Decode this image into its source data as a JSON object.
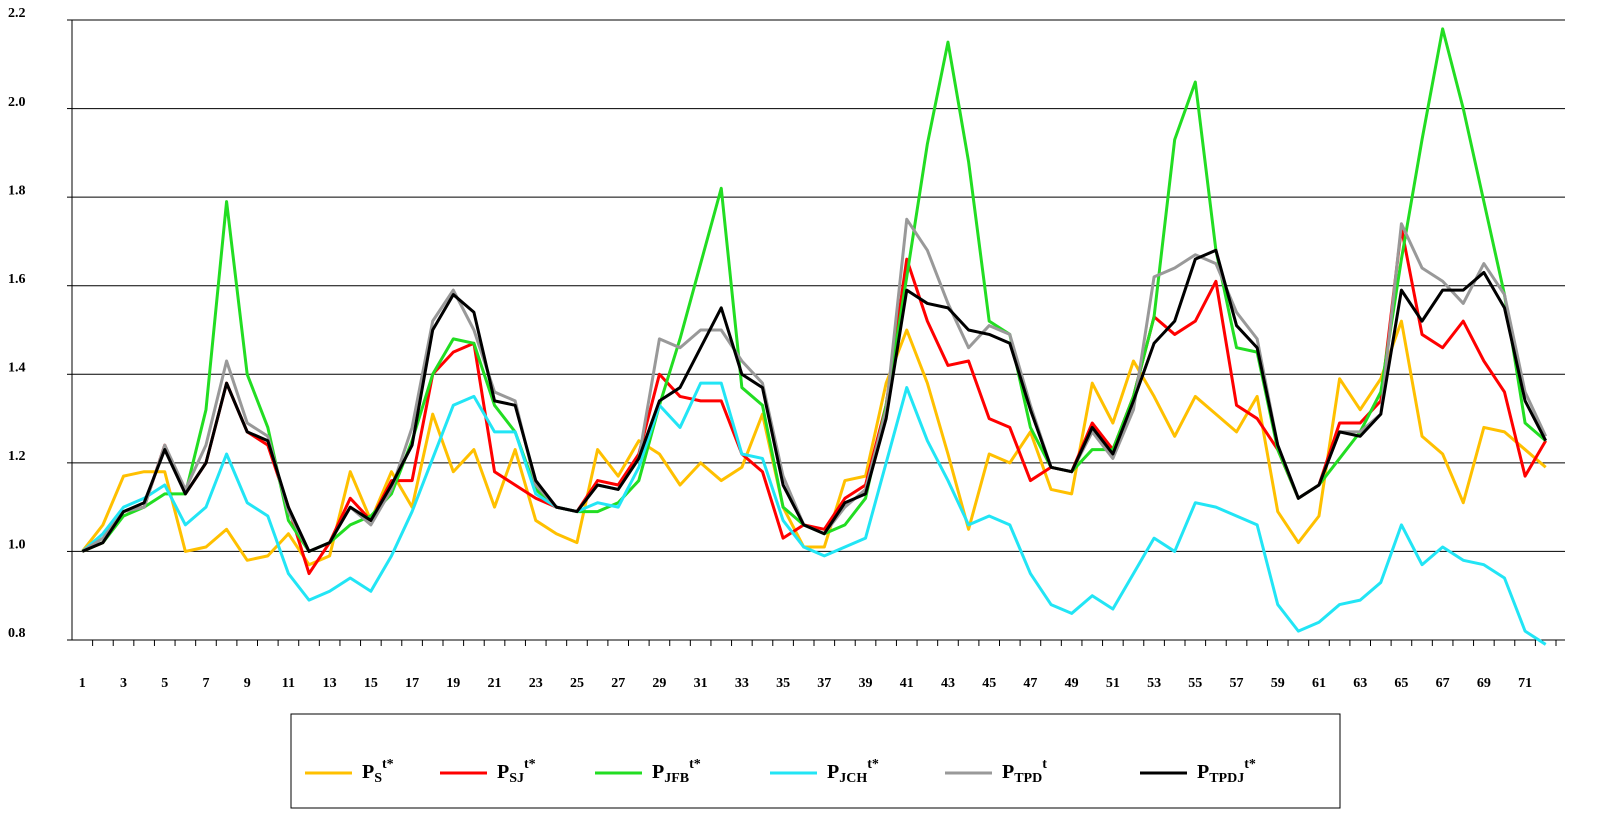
{
  "chart_data": {
    "type": "line",
    "categories": [
      1,
      null,
      3,
      null,
      5,
      null,
      7,
      null,
      9,
      null,
      11,
      null,
      13,
      null,
      15,
      null,
      17,
      null,
      19,
      null,
      21,
      null,
      23,
      null,
      25,
      null,
      27,
      null,
      29,
      null,
      31,
      null,
      33,
      null,
      35,
      null,
      37,
      null,
      39,
      null,
      41,
      null,
      43,
      null,
      45,
      null,
      47,
      null,
      49,
      null,
      51,
      null,
      53,
      null,
      55,
      null,
      57,
      null,
      59,
      null,
      61,
      null,
      63,
      null,
      65,
      null,
      67,
      null,
      69,
      null,
      71,
      null
    ],
    "ylim": [
      0.8,
      2.2
    ],
    "yticks": [
      {
        "value": 0.8,
        "label": "0.8"
      },
      {
        "value": 1.0,
        "label": "1.0"
      },
      {
        "value": 1.2,
        "label": "1.2"
      },
      {
        "value": 1.4,
        "label": "1.4"
      },
      {
        "value": 1.6,
        "label": "1.6"
      },
      {
        "value": 1.8,
        "label": "1.8"
      },
      {
        "value": 2.0,
        "label": "2.0"
      },
      {
        "value": 2.2,
        "label": "2.2"
      }
    ],
    "grid": true,
    "legend": "bottom",
    "series": [
      {
        "name": {
          "base": "P",
          "sub": "S",
          "sup": "t*"
        },
        "color": "#ffc000",
        "values": [
          1.0,
          1.06,
          1.17,
          1.18,
          1.18,
          1.0,
          1.01,
          1.05,
          0.98,
          0.99,
          1.04,
          0.97,
          0.99,
          1.18,
          1.07,
          1.18,
          1.1,
          1.31,
          1.18,
          1.23,
          1.1,
          1.23,
          1.07,
          1.04,
          1.02,
          1.23,
          1.17,
          1.25,
          1.22,
          1.15,
          1.2,
          1.16,
          1.19,
          1.31,
          1.1,
          1.01,
          1.01,
          1.16,
          1.17,
          1.38,
          1.5,
          1.38,
          1.22,
          1.05,
          1.22,
          1.2,
          1.27,
          1.14,
          1.13,
          1.38,
          1.29,
          1.43,
          1.35,
          1.26,
          1.35,
          1.31,
          1.27,
          1.35,
          1.09,
          1.02,
          1.08,
          1.39,
          1.32,
          1.39,
          1.52,
          1.26,
          1.22,
          1.11,
          1.28,
          1.27,
          1.23,
          1.19
        ]
      },
      {
        "name": {
          "base": "P",
          "sub": "SJ",
          "sup": "t*"
        },
        "color": "#ff0000",
        "values": [
          1.0,
          1.02,
          1.09,
          1.1,
          1.24,
          1.13,
          1.2,
          1.38,
          1.27,
          1.24,
          1.1,
          0.95,
          1.02,
          1.12,
          1.07,
          1.16,
          1.16,
          1.4,
          1.45,
          1.47,
          1.18,
          1.15,
          1.12,
          1.1,
          1.09,
          1.16,
          1.15,
          1.22,
          1.4,
          1.35,
          1.34,
          1.34,
          1.22,
          1.18,
          1.03,
          1.06,
          1.05,
          1.12,
          1.15,
          1.33,
          1.66,
          1.52,
          1.42,
          1.43,
          1.3,
          1.28,
          1.16,
          1.19,
          1.18,
          1.29,
          1.23,
          1.35,
          1.53,
          1.49,
          1.52,
          1.61,
          1.33,
          1.3,
          1.23,
          1.12,
          1.15,
          1.29,
          1.29,
          1.34,
          1.73,
          1.49,
          1.46,
          1.52,
          1.43,
          1.36,
          1.17,
          1.25
        ]
      },
      {
        "name": {
          "base": "P",
          "sub": "JFB",
          "sup": "t*"
        },
        "color": "#22dd22",
        "values": [
          1.0,
          1.02,
          1.08,
          1.1,
          1.13,
          1.13,
          1.32,
          1.79,
          1.4,
          1.28,
          1.07,
          1.0,
          1.02,
          1.06,
          1.08,
          1.13,
          1.25,
          1.4,
          1.48,
          1.47,
          1.33,
          1.27,
          1.14,
          1.1,
          1.09,
          1.09,
          1.11,
          1.16,
          1.33,
          1.48,
          1.65,
          1.82,
          1.37,
          1.33,
          1.1,
          1.06,
          1.04,
          1.06,
          1.12,
          1.33,
          1.62,
          1.92,
          2.15,
          1.88,
          1.52,
          1.49,
          1.28,
          1.19,
          1.18,
          1.23,
          1.23,
          1.35,
          1.53,
          1.93,
          2.06,
          1.68,
          1.46,
          1.45,
          1.23,
          1.12,
          1.15,
          1.21,
          1.27,
          1.36,
          1.66,
          1.93,
          2.18,
          2.0,
          1.79,
          1.58,
          1.29,
          1.25
        ]
      },
      {
        "name": {
          "base": "P",
          "sub": "JCH",
          "sup": "t*"
        },
        "color": "#22e5f5",
        "values": [
          1.0,
          1.04,
          1.1,
          1.12,
          1.15,
          1.06,
          1.1,
          1.22,
          1.11,
          1.08,
          0.95,
          0.89,
          0.91,
          0.94,
          0.91,
          0.99,
          1.09,
          1.21,
          1.33,
          1.35,
          1.27,
          1.27,
          1.13,
          1.1,
          1.09,
          1.11,
          1.1,
          1.19,
          1.33,
          1.28,
          1.38,
          1.38,
          1.22,
          1.21,
          1.07,
          1.01,
          0.99,
          1.01,
          1.03,
          1.2,
          1.37,
          1.25,
          1.16,
          1.06,
          1.08,
          1.06,
          0.95,
          0.88,
          0.86,
          0.9,
          0.87,
          0.95,
          1.03,
          1.0,
          1.11,
          1.1,
          1.08,
          1.06,
          0.88,
          0.82,
          0.84,
          0.88,
          0.89,
          0.93,
          1.06,
          0.97,
          1.01,
          0.98,
          0.97,
          0.94,
          0.82,
          0.79
        ]
      },
      {
        "name": {
          "base": "P",
          "sub": "TPD",
          "sup": "t"
        },
        "color": "#999999",
        "values": [
          1.0,
          1.03,
          1.09,
          1.1,
          1.24,
          1.14,
          1.24,
          1.43,
          1.29,
          1.26,
          1.09,
          1.0,
          1.02,
          1.1,
          1.06,
          1.14,
          1.28,
          1.52,
          1.59,
          1.5,
          1.36,
          1.34,
          1.15,
          1.1,
          1.09,
          1.15,
          1.14,
          1.21,
          1.48,
          1.46,
          1.5,
          1.5,
          1.43,
          1.38,
          1.17,
          1.06,
          1.04,
          1.1,
          1.14,
          1.32,
          1.75,
          1.68,
          1.56,
          1.46,
          1.51,
          1.49,
          1.33,
          1.19,
          1.18,
          1.27,
          1.21,
          1.32,
          1.62,
          1.64,
          1.67,
          1.65,
          1.54,
          1.48,
          1.24,
          1.12,
          1.15,
          1.27,
          1.27,
          1.31,
          1.74,
          1.64,
          1.61,
          1.56,
          1.65,
          1.58,
          1.36,
          1.26
        ]
      },
      {
        "name": {
          "base": "P",
          "sub": "TPDJ",
          "sup": "t*"
        },
        "color": "#000000",
        "values": [
          1.0,
          1.02,
          1.09,
          1.11,
          1.23,
          1.13,
          1.2,
          1.38,
          1.27,
          1.25,
          1.1,
          1.0,
          1.02,
          1.1,
          1.07,
          1.15,
          1.24,
          1.5,
          1.58,
          1.54,
          1.34,
          1.33,
          1.16,
          1.1,
          1.09,
          1.15,
          1.14,
          1.21,
          1.34,
          1.37,
          1.46,
          1.55,
          1.4,
          1.37,
          1.15,
          1.06,
          1.04,
          1.11,
          1.13,
          1.3,
          1.59,
          1.56,
          1.55,
          1.5,
          1.49,
          1.47,
          1.32,
          1.19,
          1.18,
          1.28,
          1.22,
          1.34,
          1.47,
          1.52,
          1.66,
          1.68,
          1.51,
          1.46,
          1.24,
          1.12,
          1.15,
          1.27,
          1.26,
          1.31,
          1.59,
          1.52,
          1.59,
          1.59,
          1.63,
          1.55,
          1.34,
          1.25
        ]
      }
    ]
  }
}
